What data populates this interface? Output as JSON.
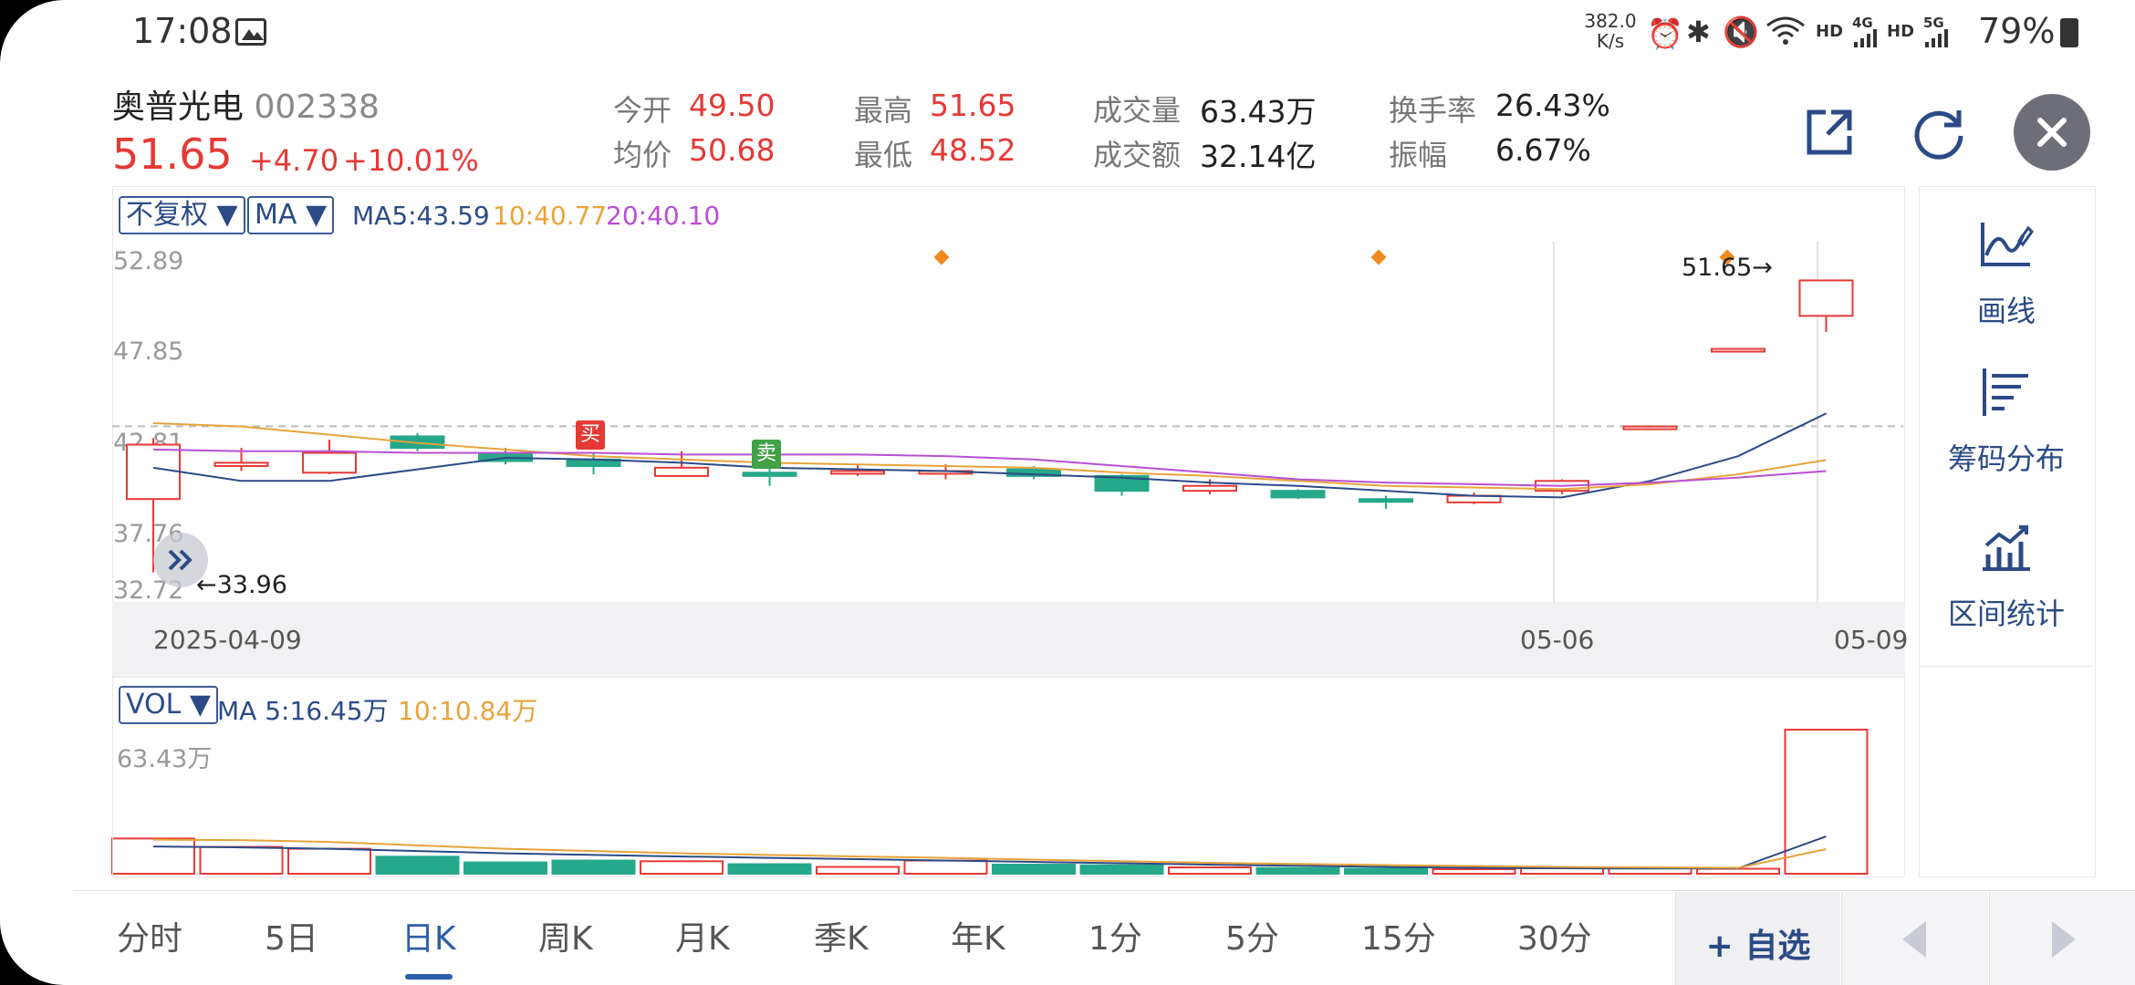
{
  "status_bar": {
    "time": "17:08",
    "net_speed_value": "382.0",
    "net_speed_unit": "K/s",
    "hd1": "HD",
    "signal1": "4G",
    "hd2": "HD",
    "signal2": "5G",
    "battery": "79%"
  },
  "stock": {
    "name": "奥普光电",
    "code": "002338",
    "price": "51.65",
    "change": "+4.70",
    "change_pct": "+10.01%"
  },
  "quote": {
    "open_label": "今开",
    "open": "49.50",
    "high_label": "最高",
    "high": "51.65",
    "volume_label": "成交量",
    "volume": "63.43万",
    "turnover_label": "换手率",
    "turnover": "26.43%",
    "avg_label": "均价",
    "avg": "50.68",
    "low_label": "最低",
    "low": "48.52",
    "amount_label": "成交额",
    "amount": "32.14亿",
    "amplitude_label": "振幅",
    "amplitude": "6.67%"
  },
  "chart_controls": {
    "adjust": "不复权 ▼",
    "indicator": "MA ▼",
    "ma5": "MA5:43.59",
    "ma10": "10:40.77",
    "ma20": "20:40.10",
    "vol_indicator": "VOL ▼",
    "vol_ma5": "MA 5:16.45万",
    "vol_ma10": "10:10.84万"
  },
  "y_axis": [
    "52.89",
    "47.85",
    "42.81",
    "37.76",
    "32.72"
  ],
  "x_axis": {
    "start": "2025-04-09",
    "mid": "05-06",
    "end": "05-09"
  },
  "annotations": {
    "high_price": "51.65→",
    "low_price": "←33.96",
    "buy": "买",
    "sell": "卖",
    "vol_max": "63.43万"
  },
  "tools": [
    {
      "label": "画线",
      "icon": "draw-line-icon"
    },
    {
      "label": "筹码分布",
      "icon": "chip-distribution-icon"
    },
    {
      "label": "区间统计",
      "icon": "interval-stats-icon"
    }
  ],
  "tabs": [
    "分时",
    "5日",
    "日K",
    "周K",
    "月K",
    "季K",
    "年K",
    "1分",
    "5分",
    "15分",
    "30分"
  ],
  "active_tab": "日K",
  "add_watchlist": "+ 自选",
  "colors": {
    "up": "#e53935",
    "down": "#26a88a",
    "ma5": "#2b4a86",
    "ma10": "#e8a33a",
    "ma20": "#b84fd4",
    "accent": "#2b5ea8"
  },
  "chart_data": {
    "type": "candlestick",
    "x_range": [
      "2025-04-09",
      "2025-05-09"
    ],
    "ylim": [
      32.72,
      52.89
    ],
    "candles": [
      {
        "o": 38.4,
        "c": 41.7,
        "h": 42.1,
        "l": 33.96
      },
      {
        "o": 40.4,
        "c": 40.6,
        "h": 41.5,
        "l": 40.1
      },
      {
        "o": 40.0,
        "c": 41.2,
        "h": 42.0,
        "l": 39.9
      },
      {
        "o": 42.2,
        "c": 41.5,
        "h": 42.4,
        "l": 41.3
      },
      {
        "o": 41.2,
        "c": 40.7,
        "h": 41.5,
        "l": 40.5
      },
      {
        "o": 40.8,
        "c": 40.4,
        "h": 41.2,
        "l": 39.9
      },
      {
        "o": 39.8,
        "c": 40.3,
        "h": 41.3,
        "l": 39.8
      },
      {
        "o": 40.0,
        "c": 39.8,
        "h": 40.6,
        "l": 39.2
      },
      {
        "o": 40.0,
        "c": 40.1,
        "h": 40.5,
        "l": 39.8
      },
      {
        "o": 40.0,
        "c": 40.1,
        "h": 40.5,
        "l": 39.6
      },
      {
        "o": 40.2,
        "c": 39.8,
        "h": 40.4,
        "l": 39.6
      },
      {
        "o": 39.8,
        "c": 38.9,
        "h": 39.9,
        "l": 38.6
      },
      {
        "o": 38.9,
        "c": 39.2,
        "h": 39.6,
        "l": 38.7
      },
      {
        "o": 38.9,
        "c": 38.5,
        "h": 39.0,
        "l": 38.4
      },
      {
        "o": 38.4,
        "c": 38.3,
        "h": 38.6,
        "l": 37.8
      },
      {
        "o": 38.2,
        "c": 38.6,
        "h": 38.8,
        "l": 38.1
      },
      {
        "o": 38.9,
        "c": 39.5,
        "h": 39.6,
        "l": 38.7
      },
      {
        "o": 42.8,
        "c": 42.8,
        "h": 42.8,
        "l": 42.8
      },
      {
        "o": 47.5,
        "c": 47.5,
        "h": 47.5,
        "l": 47.5
      },
      {
        "o": 49.5,
        "c": 51.65,
        "h": 51.65,
        "l": 48.52
      }
    ],
    "volumes": [
      15.5,
      11.8,
      11.0,
      7.5,
      5.0,
      5.8,
      5.5,
      4.2,
      3.0,
      5.8,
      4.0,
      3.7,
      2.8,
      2.5,
      2.2,
      2.0,
      2.4,
      2.5,
      2.2,
      63.43
    ],
    "series": [
      {
        "name": "MA5",
        "values": [
          40.3,
          39.5,
          39.5,
          40.2,
          40.9,
          40.8,
          40.6,
          40.3,
          40.2,
          40.1,
          39.9,
          39.7,
          39.4,
          39.2,
          38.9,
          38.6,
          38.5,
          39.5,
          41.0,
          43.59
        ]
      },
      {
        "name": "10",
        "values": [
          43.0,
          42.8,
          42.3,
          41.8,
          41.4,
          41.0,
          40.8,
          40.6,
          40.5,
          40.4,
          40.3,
          40.0,
          39.8,
          39.5,
          39.2,
          39.1,
          39.0,
          39.3,
          39.9,
          40.77
        ]
      },
      {
        "name": "20",
        "values": [
          41.4,
          41.3,
          41.3,
          41.2,
          41.2,
          41.2,
          41.1,
          41.1,
          41.1,
          41.0,
          40.8,
          40.4,
          40.0,
          39.6,
          39.4,
          39.3,
          39.2,
          39.4,
          39.7,
          40.1
        ]
      }
    ],
    "vol_series": [
      {
        "name": "MA 5",
        "values": [
          12.0,
          11.6,
          11.0,
          10.0,
          9.0,
          8.3,
          7.6,
          7.0,
          6.4,
          5.8,
          5.2,
          4.6,
          4.0,
          3.5,
          3.0,
          2.6,
          2.4,
          2.3,
          2.4,
          16.45
        ]
      },
      {
        "name": "10",
        "values": [
          15.0,
          14.8,
          14.0,
          12.5,
          11.0,
          10.0,
          9.0,
          8.3,
          7.6,
          7.0,
          6.2,
          5.5,
          4.8,
          4.3,
          3.8,
          3.4,
          3.0,
          2.8,
          2.6,
          10.84
        ]
      }
    ]
  }
}
